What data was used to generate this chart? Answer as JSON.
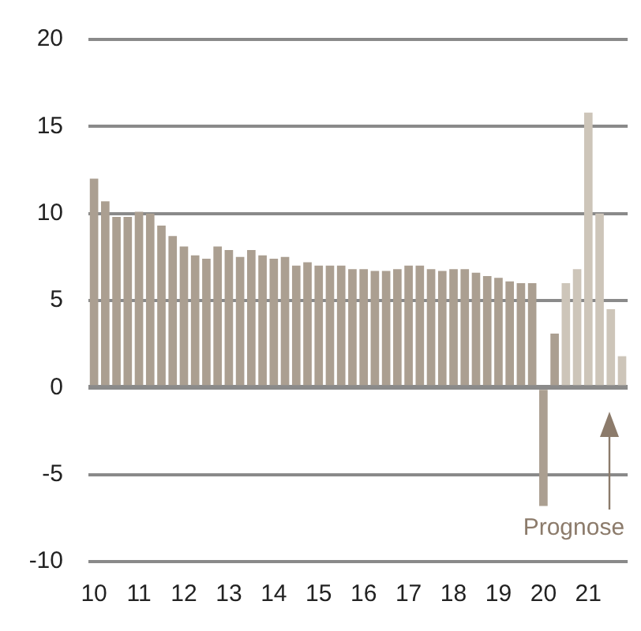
{
  "chart_data": {
    "type": "bar",
    "categories": [
      "10",
      null,
      null,
      null,
      "11",
      null,
      null,
      null,
      "12",
      null,
      null,
      null,
      "13",
      null,
      null,
      null,
      "14",
      null,
      null,
      null,
      "15",
      null,
      null,
      null,
      "16",
      null,
      null,
      null,
      "17",
      null,
      null,
      null,
      "18",
      null,
      null,
      null,
      "19",
      null,
      null,
      null,
      "20",
      null,
      null,
      null,
      "21",
      null,
      null,
      null
    ],
    "values": [
      12.0,
      10.7,
      9.8,
      9.8,
      10.1,
      10.0,
      9.3,
      8.7,
      8.1,
      7.6,
      7.4,
      8.1,
      7.9,
      7.5,
      7.9,
      7.6,
      7.4,
      7.5,
      7.0,
      7.2,
      7.0,
      7.0,
      7.0,
      6.8,
      6.8,
      6.7,
      6.7,
      6.8,
      7.0,
      7.0,
      6.8,
      6.7,
      6.8,
      6.8,
      6.6,
      6.4,
      6.3,
      6.1,
      6.0,
      6.0,
      -6.8,
      3.1,
      6.0,
      6.8,
      15.8,
      10.0,
      4.5,
      1.8
    ],
    "colors": [
      "#ab9f91",
      "#ab9f91",
      "#ab9f91",
      "#ab9f91",
      "#ab9f91",
      "#ab9f91",
      "#ab9f91",
      "#ab9f91",
      "#ab9f91",
      "#ab9f91",
      "#ab9f91",
      "#ab9f91",
      "#ab9f91",
      "#ab9f91",
      "#ab9f91",
      "#ab9f91",
      "#ab9f91",
      "#ab9f91",
      "#ab9f91",
      "#ab9f91",
      "#ab9f91",
      "#ab9f91",
      "#ab9f91",
      "#ab9f91",
      "#ab9f91",
      "#ab9f91",
      "#ab9f91",
      "#ab9f91",
      "#ab9f91",
      "#ab9f91",
      "#ab9f91",
      "#ab9f91",
      "#ab9f91",
      "#ab9f91",
      "#ab9f91",
      "#ab9f91",
      "#ab9f91",
      "#ab9f91",
      "#ab9f91",
      "#ab9f91",
      "#ab9f91",
      "#ab9f91",
      "#cdc5b9",
      "#cdc5b9",
      "#cdc5b9",
      "#cdc5b9",
      "#cdc5b9",
      "#cdc5b9"
    ],
    "ylim": [
      -10,
      20
    ],
    "yticks": [
      -10,
      -5,
      0,
      5,
      10,
      15,
      20
    ],
    "grid": "y",
    "annotations": [
      "Prognose"
    ]
  }
}
